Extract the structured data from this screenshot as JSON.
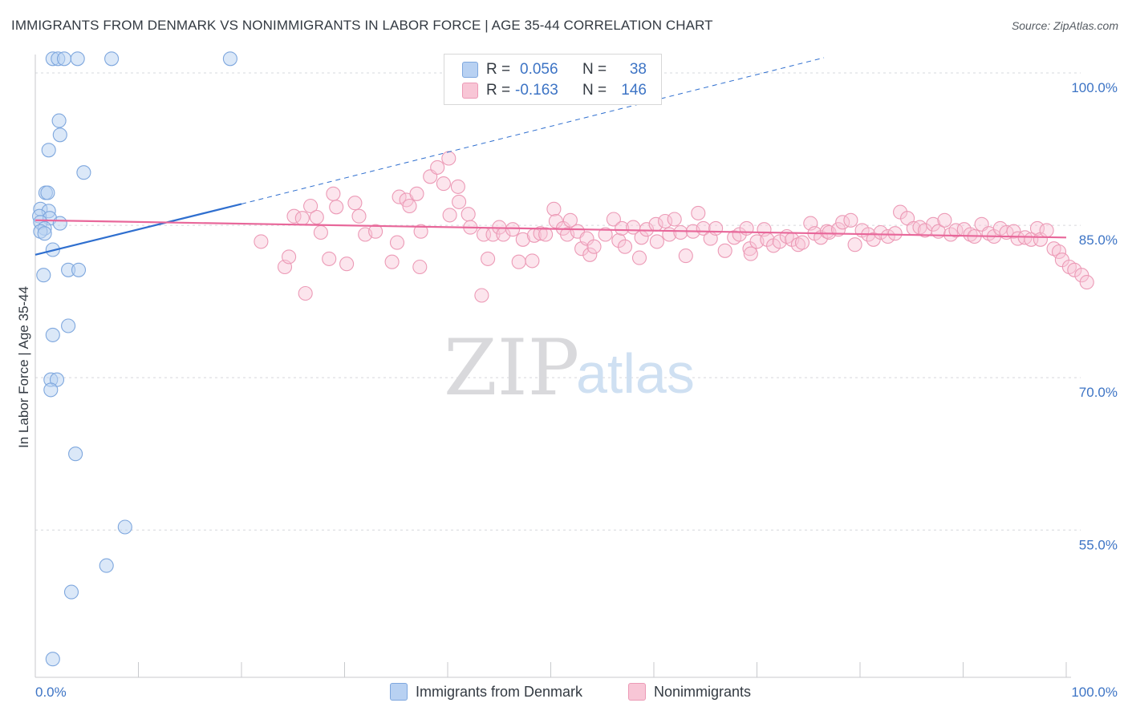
{
  "header": {
    "title": "IMMIGRANTS FROM DENMARK VS NONIMMIGRANTS IN LABOR FORCE | AGE 35-44 CORRELATION CHART",
    "source": "Source: ZipAtlas.com"
  },
  "watermark": {
    "zip": "ZIP",
    "atlas": "atlas"
  },
  "legend": {
    "rows": [
      {
        "r_label": "R =",
        "r_value": "0.056",
        "n_label": "N =",
        "n_value": "38",
        "color": "#7ea7de"
      },
      {
        "r_label": "R =",
        "r_value": "-0.163",
        "n_label": "N =",
        "n_value": "146",
        "color": "#ec9ab6"
      }
    ]
  },
  "bottom_legend": {
    "series1": "Immigrants from Denmark",
    "series2": "Nonimmigrants"
  },
  "chart_data": {
    "type": "scatter",
    "title": "IMMIGRANTS FROM DENMARK VS NONIMMIGRANTS IN LABOR FORCE | AGE 35-44 CORRELATION CHART",
    "xlabel": "",
    "ylabel": "In Labor Force | Age 35-44",
    "xlim": [
      0,
      100
    ],
    "ylim": [
      40.5,
      101.5
    ],
    "x_tick_labels": [
      "0.0%",
      "100.0%"
    ],
    "y_ticks": [
      55,
      70,
      85,
      100
    ],
    "y_tick_labels": [
      "55.0%",
      "70.0%",
      "85.0%",
      "100.0%"
    ],
    "grid": true,
    "colors": {
      "blue": "#7ea7de",
      "blue_line": "#2f6fcf",
      "pink": "#ec9ab6",
      "pink_line": "#e8679a"
    },
    "series": [
      {
        "name": "Immigrants from Denmark",
        "r": 0.056,
        "n": 38,
        "points": [
          [
            1.7,
            101.4
          ],
          [
            2.2,
            101.4
          ],
          [
            2.8,
            101.4
          ],
          [
            4.1,
            101.4
          ],
          [
            7.4,
            101.4
          ],
          [
            18.9,
            101.4
          ],
          [
            2.3,
            95.3
          ],
          [
            2.4,
            93.9
          ],
          [
            1.3,
            92.4
          ],
          [
            4.7,
            90.2
          ],
          [
            1.0,
            88.2
          ],
          [
            1.2,
            88.2
          ],
          [
            0.5,
            86.6
          ],
          [
            1.3,
            86.4
          ],
          [
            0.4,
            85.9
          ],
          [
            1.4,
            85.7
          ],
          [
            0.5,
            85.3
          ],
          [
            2.4,
            85.2
          ],
          [
            0.9,
            84.7
          ],
          [
            0.5,
            84.4
          ],
          [
            0.9,
            84.2
          ],
          [
            1.7,
            82.6
          ],
          [
            3.2,
            80.6
          ],
          [
            4.2,
            80.6
          ],
          [
            0.8,
            80.1
          ],
          [
            3.2,
            75.1
          ],
          [
            1.7,
            74.2
          ],
          [
            1.5,
            69.8
          ],
          [
            2.1,
            69.8
          ],
          [
            1.5,
            68.8
          ],
          [
            3.9,
            62.5
          ],
          [
            8.7,
            55.3
          ],
          [
            6.9,
            51.5
          ],
          [
            3.5,
            48.9
          ],
          [
            1.7,
            42.3
          ]
        ],
        "trend": {
          "x": [
            0,
            20
          ],
          "y": [
            82.1,
            87.1
          ],
          "dashed_to": [
            76.5,
            101.5
          ]
        }
      },
      {
        "name": "Nonimmigrants",
        "r": -0.163,
        "n": 146,
        "points": [
          [
            21.9,
            83.4
          ],
          [
            24.2,
            80.9
          ],
          [
            24.6,
            81.9
          ],
          [
            25.1,
            85.9
          ],
          [
            25.9,
            85.7
          ],
          [
            26.2,
            78.3
          ],
          [
            26.7,
            86.9
          ],
          [
            27.3,
            85.8
          ],
          [
            27.7,
            84.3
          ],
          [
            28.5,
            81.7
          ],
          [
            28.9,
            88.1
          ],
          [
            29.2,
            86.8
          ],
          [
            30.2,
            81.2
          ],
          [
            31.0,
            87.2
          ],
          [
            31.4,
            85.9
          ],
          [
            32.0,
            84.1
          ],
          [
            33.0,
            84.4
          ],
          [
            34.6,
            81.4
          ],
          [
            35.1,
            83.3
          ],
          [
            35.3,
            87.8
          ],
          [
            36.0,
            87.5
          ],
          [
            36.3,
            86.9
          ],
          [
            37.0,
            88.1
          ],
          [
            37.3,
            80.9
          ],
          [
            37.4,
            84.4
          ],
          [
            38.3,
            89.8
          ],
          [
            39.0,
            90.7
          ],
          [
            39.6,
            89.1
          ],
          [
            40.1,
            91.6
          ],
          [
            40.2,
            86.0
          ],
          [
            41.0,
            88.8
          ],
          [
            41.1,
            87.3
          ],
          [
            42.0,
            86.1
          ],
          [
            42.2,
            84.8
          ],
          [
            43.3,
            78.1
          ],
          [
            43.5,
            84.1
          ],
          [
            43.9,
            81.7
          ],
          [
            44.4,
            84.1
          ],
          [
            45.0,
            84.8
          ],
          [
            45.4,
            84.1
          ],
          [
            46.3,
            84.6
          ],
          [
            46.9,
            81.4
          ],
          [
            47.3,
            83.6
          ],
          [
            48.2,
            81.5
          ],
          [
            48.4,
            84.0
          ],
          [
            49.0,
            84.2
          ],
          [
            49.5,
            84.1
          ],
          [
            50.3,
            86.6
          ],
          [
            50.5,
            85.4
          ],
          [
            51.2,
            84.7
          ],
          [
            51.6,
            84.1
          ],
          [
            51.9,
            85.5
          ],
          [
            52.6,
            84.4
          ],
          [
            53.0,
            82.7
          ],
          [
            53.5,
            83.7
          ],
          [
            53.8,
            82.1
          ],
          [
            54.2,
            82.9
          ],
          [
            55.3,
            84.1
          ],
          [
            56.1,
            85.6
          ],
          [
            56.6,
            83.5
          ],
          [
            56.9,
            84.7
          ],
          [
            57.2,
            82.9
          ],
          [
            58.0,
            84.8
          ],
          [
            58.6,
            81.8
          ],
          [
            58.8,
            83.8
          ],
          [
            59.3,
            84.6
          ],
          [
            60.2,
            85.1
          ],
          [
            60.3,
            83.4
          ],
          [
            61.1,
            85.4
          ],
          [
            61.5,
            84.1
          ],
          [
            62.0,
            85.6
          ],
          [
            62.6,
            84.3
          ],
          [
            63.1,
            82.0
          ],
          [
            63.8,
            84.4
          ],
          [
            64.3,
            86.2
          ],
          [
            64.8,
            84.7
          ],
          [
            65.5,
            83.7
          ],
          [
            66.0,
            84.7
          ],
          [
            66.9,
            82.5
          ],
          [
            67.8,
            83.8
          ],
          [
            68.3,
            84.1
          ],
          [
            69.0,
            84.7
          ],
          [
            69.3,
            82.7
          ],
          [
            69.4,
            82.2
          ],
          [
            70.0,
            83.4
          ],
          [
            70.7,
            84.6
          ],
          [
            71.0,
            83.6
          ],
          [
            71.6,
            83.0
          ],
          [
            72.2,
            83.4
          ],
          [
            72.9,
            83.9
          ],
          [
            73.4,
            83.6
          ],
          [
            74.0,
            83.1
          ],
          [
            74.4,
            83.3
          ],
          [
            75.2,
            85.2
          ],
          [
            75.6,
            84.2
          ],
          [
            76.2,
            83.8
          ],
          [
            76.8,
            84.4
          ],
          [
            77.0,
            84.3
          ],
          [
            77.9,
            84.6
          ],
          [
            78.3,
            85.3
          ],
          [
            79.1,
            85.5
          ],
          [
            79.5,
            83.1
          ],
          [
            80.2,
            84.5
          ],
          [
            80.8,
            84.1
          ],
          [
            81.3,
            83.6
          ],
          [
            82.0,
            84.3
          ],
          [
            82.7,
            83.9
          ],
          [
            83.4,
            84.2
          ],
          [
            83.9,
            86.3
          ],
          [
            84.6,
            85.7
          ],
          [
            85.2,
            84.7
          ],
          [
            85.8,
            84.8
          ],
          [
            86.3,
            84.5
          ],
          [
            87.1,
            85.1
          ],
          [
            87.6,
            84.4
          ],
          [
            88.2,
            85.5
          ],
          [
            88.8,
            84.1
          ],
          [
            89.3,
            84.5
          ],
          [
            90.1,
            84.6
          ],
          [
            90.7,
            84.1
          ],
          [
            91.1,
            83.9
          ],
          [
            91.8,
            85.1
          ],
          [
            92.5,
            84.2
          ],
          [
            93.0,
            83.9
          ],
          [
            93.6,
            84.7
          ],
          [
            94.2,
            84.3
          ],
          [
            94.9,
            84.4
          ],
          [
            95.3,
            83.7
          ],
          [
            96.0,
            83.8
          ],
          [
            96.6,
            83.6
          ],
          [
            97.2,
            84.7
          ],
          [
            97.5,
            83.6
          ],
          [
            98.1,
            84.5
          ],
          [
            98.8,
            82.7
          ],
          [
            99.3,
            82.4
          ],
          [
            99.6,
            81.6
          ],
          [
            100.3,
            80.9
          ],
          [
            100.8,
            80.6
          ],
          [
            101.5,
            80.1
          ],
          [
            102.0,
            79.4
          ]
        ],
        "trend": {
          "x": [
            0,
            100
          ],
          "y": [
            85.5,
            83.8
          ]
        }
      }
    ]
  }
}
